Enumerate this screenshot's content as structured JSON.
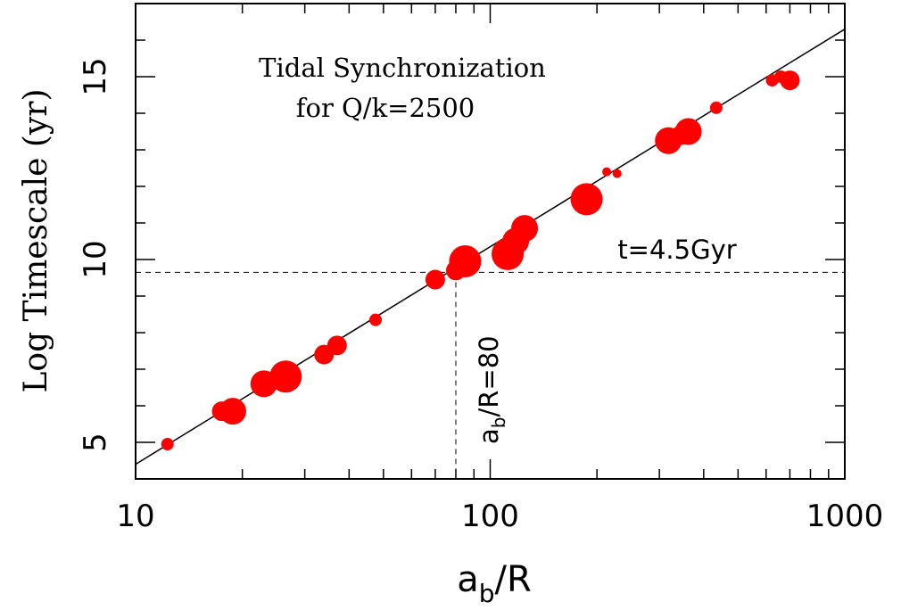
{
  "chart_data": {
    "type": "scatter",
    "title_lines": [
      "Tidal Synchronization",
      "for Q/k=2500"
    ],
    "xlabel": {
      "main": "a",
      "sub": "b",
      "rest": "/R"
    },
    "ylabel": "Log Timescale (yr)",
    "x_scale": "log",
    "xlim": [
      10,
      1000
    ],
    "ylim": [
      4,
      17
    ],
    "x_ticks": [
      10,
      100,
      1000
    ],
    "x_tick_labels": [
      "10",
      "100",
      "1000"
    ],
    "y_ticks": [
      5,
      10,
      15
    ],
    "y_tick_labels": [
      "5",
      "10",
      "15"
    ],
    "fit_line": {
      "x": [
        10,
        1000
      ],
      "y": [
        4.4,
        16.3
      ]
    },
    "hline": {
      "y": 9.65,
      "label": "t=4.5Gyr"
    },
    "vline": {
      "x": 80,
      "label_main": "a",
      "label_sub": "b",
      "label_rest": "/R=80"
    },
    "marker_color": "#ff0000",
    "line_color": "#000000",
    "points": [
      {
        "x": 12.3,
        "y": 4.95,
        "size": 1
      },
      {
        "x": 17.5,
        "y": 5.85,
        "size": 2
      },
      {
        "x": 18.8,
        "y": 5.85,
        "size": 3
      },
      {
        "x": 23.0,
        "y": 6.6,
        "size": 3
      },
      {
        "x": 26.5,
        "y": 6.8,
        "size": 4
      },
      {
        "x": 34.0,
        "y": 7.4,
        "size": 2
      },
      {
        "x": 37.0,
        "y": 7.65,
        "size": 2
      },
      {
        "x": 47.5,
        "y": 8.35,
        "size": 1
      },
      {
        "x": 70.0,
        "y": 9.45,
        "size": 2
      },
      {
        "x": 80.0,
        "y": 9.7,
        "size": 2
      },
      {
        "x": 85.0,
        "y": 9.95,
        "size": 4
      },
      {
        "x": 112.0,
        "y": 10.15,
        "size": 4
      },
      {
        "x": 118.0,
        "y": 10.5,
        "size": 3
      },
      {
        "x": 125.0,
        "y": 10.85,
        "size": 3
      },
      {
        "x": 187.0,
        "y": 11.65,
        "size": 4
      },
      {
        "x": 213.0,
        "y": 12.4,
        "size": 0
      },
      {
        "x": 228.0,
        "y": 12.35,
        "size": 0
      },
      {
        "x": 318.0,
        "y": 13.25,
        "size": 3
      },
      {
        "x": 345.0,
        "y": 13.4,
        "size": 2
      },
      {
        "x": 362.0,
        "y": 13.5,
        "size": 3
      },
      {
        "x": 434.0,
        "y": 14.15,
        "size": 1
      },
      {
        "x": 624.0,
        "y": 14.9,
        "size": 1
      },
      {
        "x": 660.0,
        "y": 15.0,
        "size": 1
      },
      {
        "x": 700.0,
        "y": 14.9,
        "size": 2
      }
    ]
  }
}
